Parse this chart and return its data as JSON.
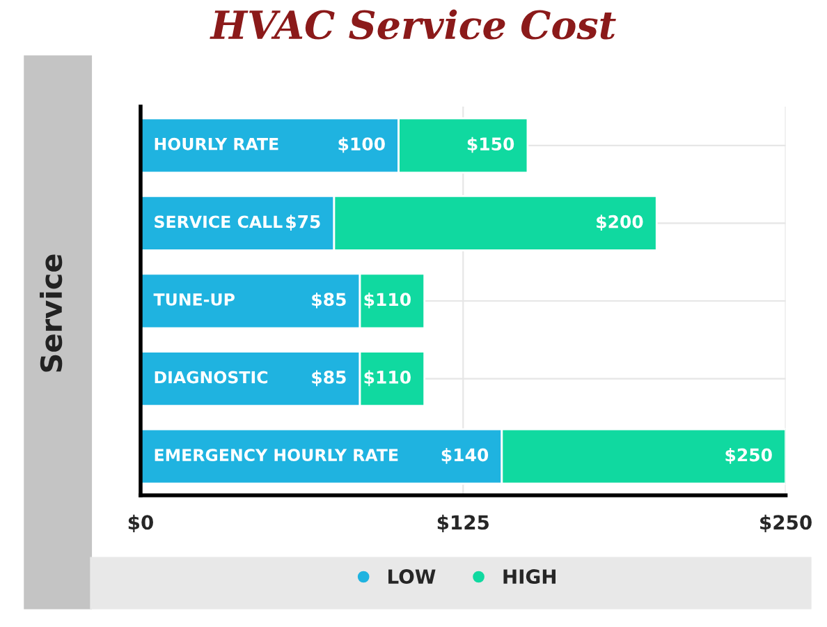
{
  "chart_data": {
    "type": "bar",
    "orientation": "horizontal",
    "stacked": true,
    "title": "HVAC Service Cost",
    "ylabel": "Service",
    "categories": [
      "HOURLY RATE",
      "SERVICE CALL",
      "TUNE-UP",
      "DIAGNOSTIC",
      "EMERGENCY HOURLY RATE"
    ],
    "series": [
      {
        "name": "LOW",
        "color": "#1fb3e0",
        "values": [
          100,
          75,
          85,
          85,
          140
        ],
        "value_labels": [
          "$100",
          "$75",
          "$85",
          "$85",
          "$140"
        ]
      },
      {
        "name": "HIGH",
        "color": "#10d9a0",
        "values": [
          50,
          125,
          25,
          25,
          110
        ]
      }
    ],
    "totals": [
      "$150",
      "$200",
      "$110",
      "$110",
      "$250"
    ],
    "xlim": [
      0,
      250
    ],
    "xticks": [
      {
        "value": 0,
        "label": "$0"
      },
      {
        "value": 125,
        "label": "$125"
      },
      {
        "value": 250,
        "label": "$250"
      }
    ],
    "grid": true,
    "legend": "bottom"
  }
}
